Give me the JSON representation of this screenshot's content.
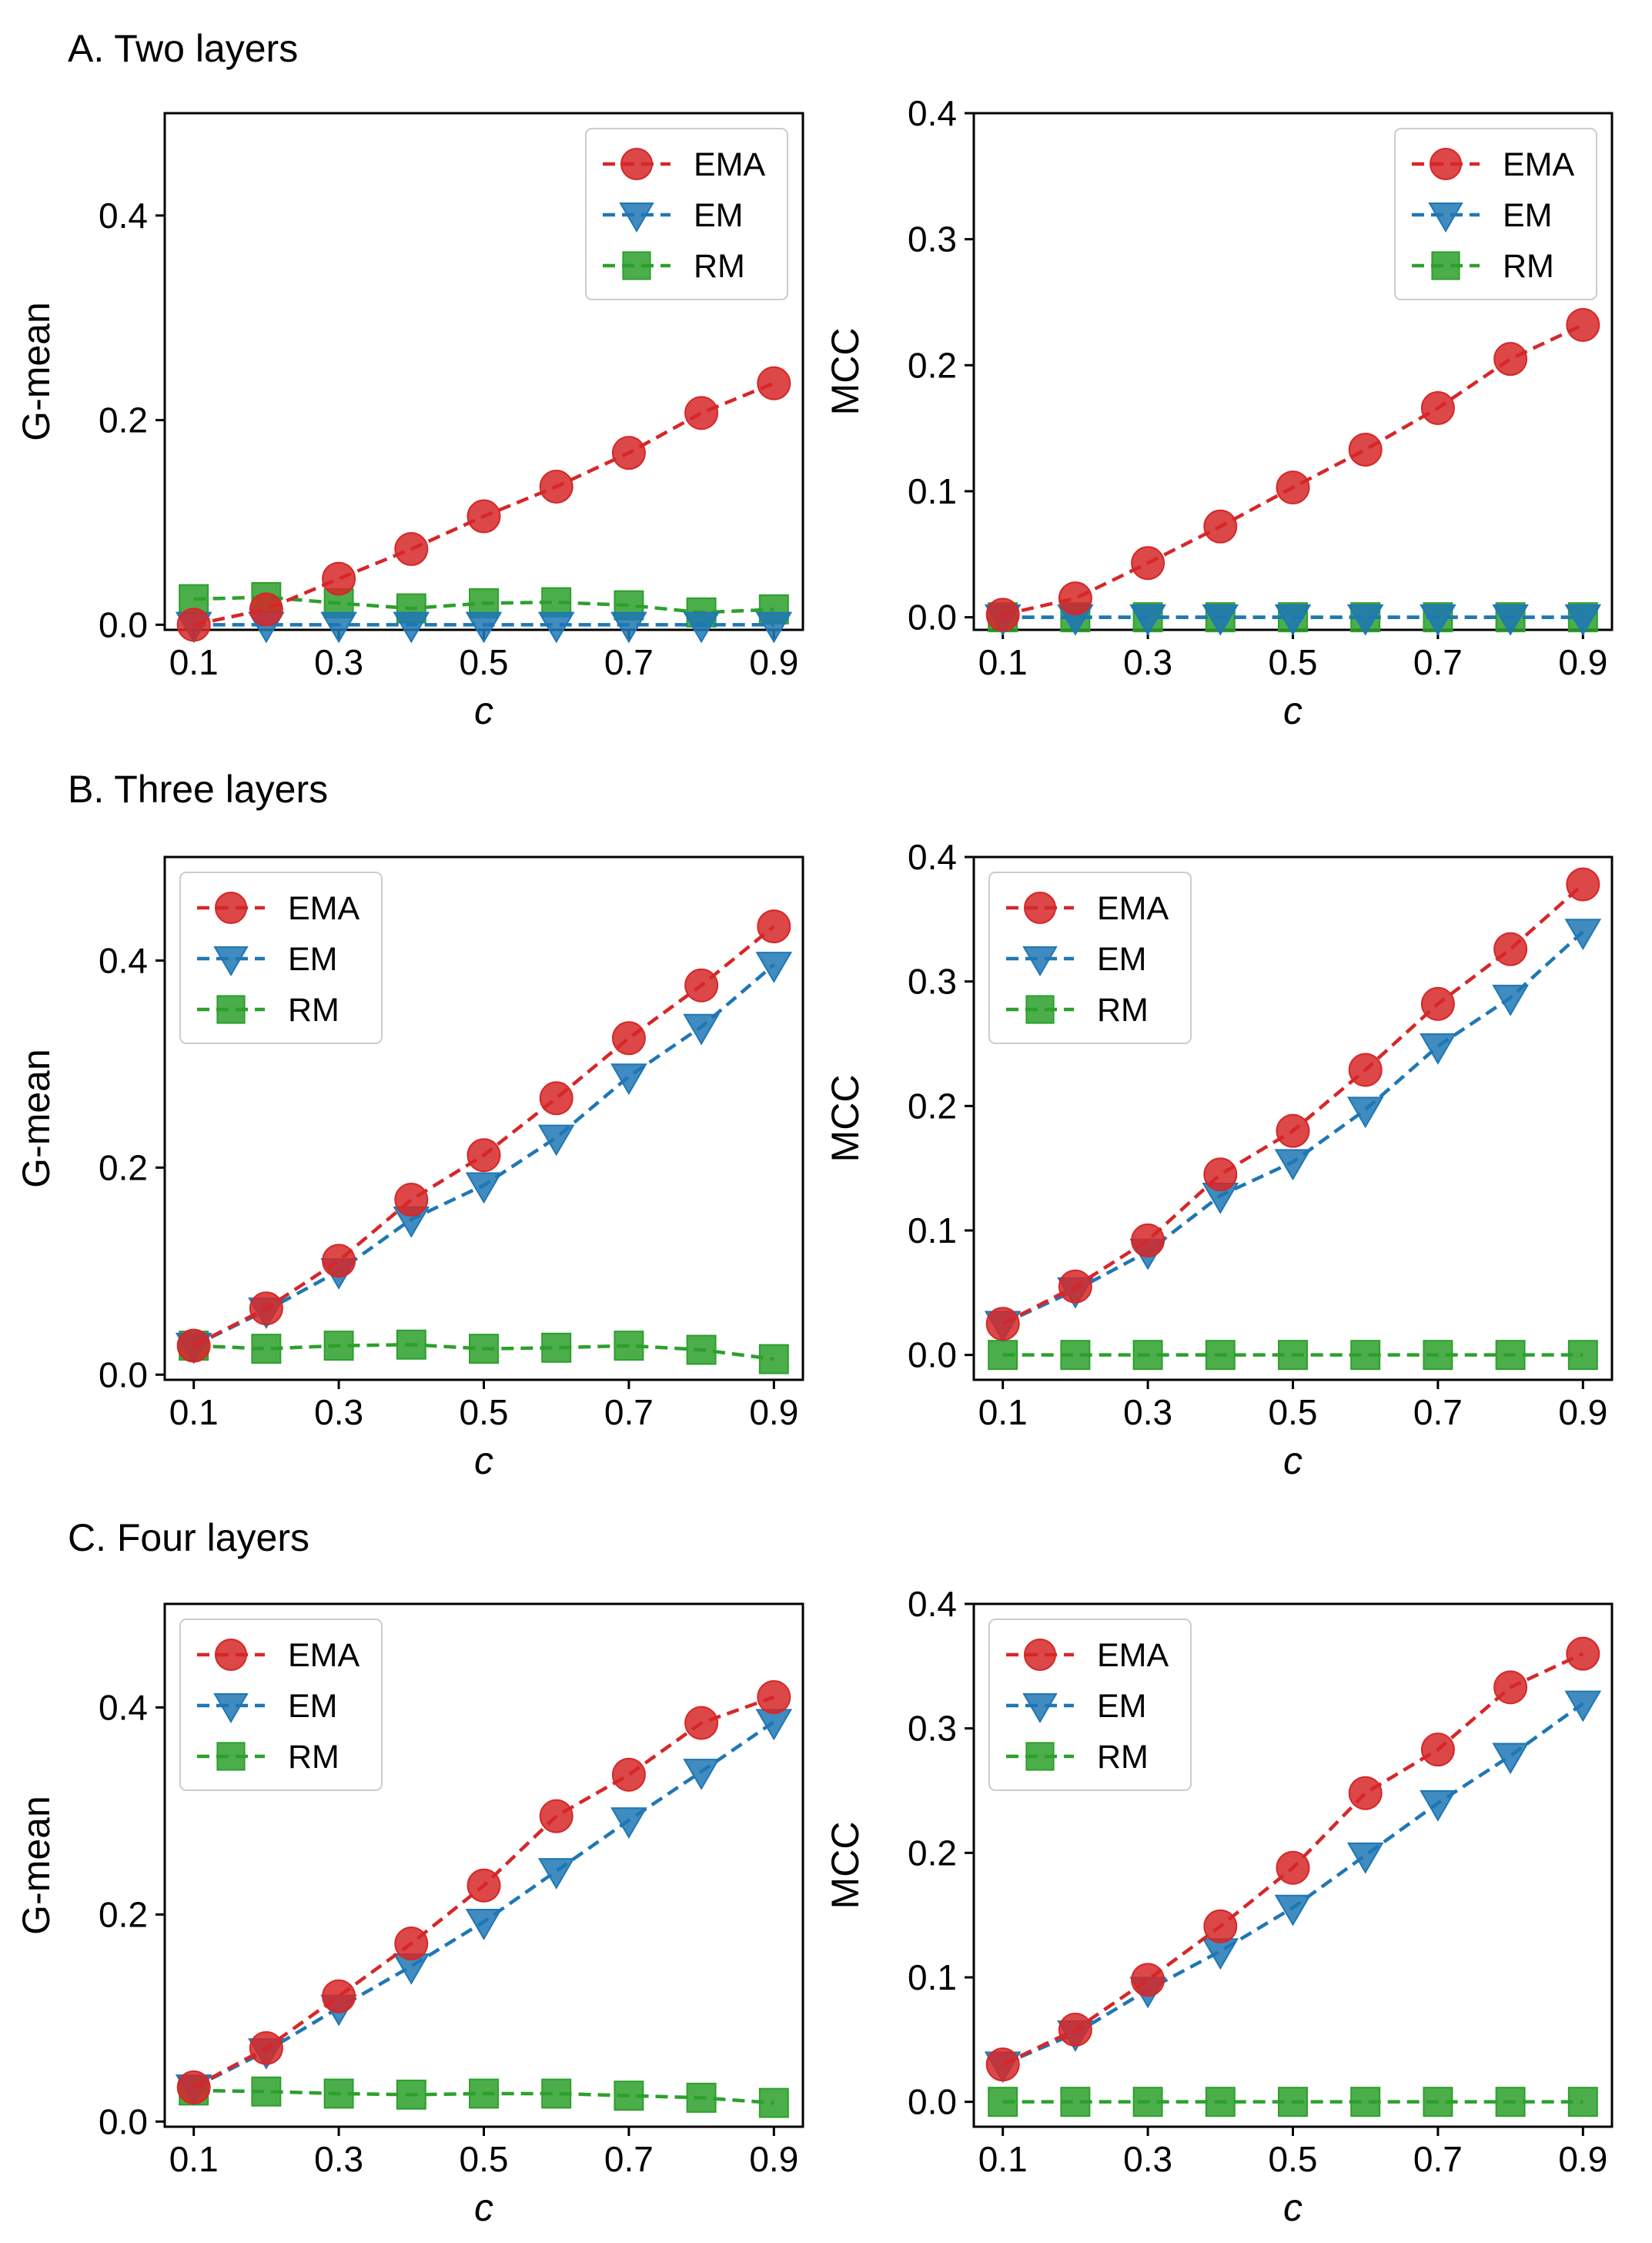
{
  "figure": {
    "panel_titles": [
      "A. Two layers",
      "B. Three layers",
      "C. Four layers"
    ]
  },
  "colors": {
    "EMA": "#d62728",
    "EM": "#1f77b4",
    "RM": "#2ca02c"
  },
  "chart_data": [
    {
      "type": "line",
      "row": "A. Two layers",
      "xlabel": "c",
      "ylabel": "G-mean",
      "x": [
        0.1,
        0.2,
        0.3,
        0.4,
        0.5,
        0.6,
        0.7,
        0.8,
        0.9
      ],
      "xticks": [
        "0.1",
        "0.3",
        "0.5",
        "0.7",
        "0.9"
      ],
      "ylim": [
        -0.005,
        0.5
      ],
      "yticks": [
        "0.0",
        "0.2",
        "0.4"
      ],
      "legend_position": "top-right",
      "series": [
        {
          "name": "EMA",
          "marker": "circle",
          "values": [
            0.0,
            0.015,
            0.045,
            0.074,
            0.106,
            0.135,
            0.168,
            0.207,
            0.236
          ]
        },
        {
          "name": "EM",
          "marker": "triangle-down",
          "values": [
            0.0,
            0.0,
            0.0,
            0.0,
            0.0,
            0.0,
            0.0,
            0.0,
            0.0
          ]
        },
        {
          "name": "RM",
          "marker": "square",
          "values": [
            0.025,
            0.027,
            0.021,
            0.016,
            0.021,
            0.022,
            0.019,
            0.012,
            0.015
          ]
        }
      ]
    },
    {
      "type": "line",
      "row": "A. Two layers",
      "xlabel": "c",
      "ylabel": "MCC",
      "x": [
        0.1,
        0.2,
        0.3,
        0.4,
        0.5,
        0.6,
        0.7,
        0.8,
        0.9
      ],
      "xticks": [
        "0.1",
        "0.3",
        "0.5",
        "0.7",
        "0.9"
      ],
      "ylim": [
        -0.01,
        0.4
      ],
      "yticks": [
        "0.0",
        "0.1",
        "0.2",
        "0.3",
        "0.4"
      ],
      "legend_position": "top-right",
      "series": [
        {
          "name": "EMA",
          "marker": "circle",
          "values": [
            0.002,
            0.015,
            0.043,
            0.072,
            0.103,
            0.133,
            0.166,
            0.205,
            0.232
          ]
        },
        {
          "name": "EM",
          "marker": "triangle-down",
          "values": [
            0.0,
            0.0,
            0.0,
            0.0,
            0.0,
            0.0,
            0.0,
            0.0,
            0.0
          ]
        },
        {
          "name": "RM",
          "marker": "square",
          "values": [
            0.0,
            0.0,
            0.0,
            0.0,
            0.0,
            0.0,
            0.0,
            0.0,
            0.0
          ]
        }
      ]
    },
    {
      "type": "line",
      "row": "B. Three layers",
      "xlabel": "c",
      "ylabel": "G-mean",
      "x": [
        0.1,
        0.2,
        0.3,
        0.4,
        0.5,
        0.6,
        0.7,
        0.8,
        0.9
      ],
      "xticks": [
        "0.1",
        "0.3",
        "0.5",
        "0.7",
        "0.9"
      ],
      "ylim": [
        -0.005,
        0.5
      ],
      "yticks": [
        "0.0",
        "0.2",
        "0.4"
      ],
      "legend_position": "top-left",
      "series": [
        {
          "name": "EMA",
          "marker": "circle",
          "values": [
            0.028,
            0.064,
            0.11,
            0.169,
            0.212,
            0.267,
            0.325,
            0.376,
            0.433
          ]
        },
        {
          "name": "EM",
          "marker": "triangle-down",
          "values": [
            0.028,
            0.062,
            0.1,
            0.15,
            0.183,
            0.229,
            0.288,
            0.336,
            0.396
          ]
        },
        {
          "name": "RM",
          "marker": "square",
          "values": [
            0.028,
            0.025,
            0.028,
            0.029,
            0.025,
            0.026,
            0.028,
            0.024,
            0.015
          ]
        }
      ]
    },
    {
      "type": "line",
      "row": "B. Three layers",
      "xlabel": "c",
      "ylabel": "MCC",
      "x": [
        0.1,
        0.2,
        0.3,
        0.4,
        0.5,
        0.6,
        0.7,
        0.8,
        0.9
      ],
      "xticks": [
        "0.1",
        "0.3",
        "0.5",
        "0.7",
        "0.9"
      ],
      "ylim": [
        -0.02,
        0.4
      ],
      "yticks": [
        "0.0",
        "0.1",
        "0.2",
        "0.3",
        "0.4"
      ],
      "legend_position": "top-left",
      "series": [
        {
          "name": "EMA",
          "marker": "circle",
          "values": [
            0.025,
            0.055,
            0.092,
            0.145,
            0.18,
            0.229,
            0.282,
            0.326,
            0.378
          ]
        },
        {
          "name": "EM",
          "marker": "triangle-down",
          "values": [
            0.025,
            0.052,
            0.083,
            0.128,
            0.155,
            0.197,
            0.248,
            0.287,
            0.34
          ]
        },
        {
          "name": "RM",
          "marker": "square",
          "values": [
            0.0,
            0.0,
            0.0,
            0.0,
            0.0,
            0.0,
            0.0,
            0.0,
            0.0
          ]
        }
      ]
    },
    {
      "type": "line",
      "row": "C. Four layers",
      "xlabel": "c",
      "ylabel": "G-mean",
      "x": [
        0.1,
        0.2,
        0.3,
        0.4,
        0.5,
        0.6,
        0.7,
        0.8,
        0.9
      ],
      "xticks": [
        "0.1",
        "0.3",
        "0.5",
        "0.7",
        "0.9"
      ],
      "ylim": [
        -0.005,
        0.5
      ],
      "yticks": [
        "0.0",
        "0.2",
        "0.4"
      ],
      "legend_position": "top-left",
      "series": [
        {
          "name": "EMA",
          "marker": "circle",
          "values": [
            0.033,
            0.071,
            0.121,
            0.172,
            0.228,
            0.295,
            0.335,
            0.385,
            0.41
          ]
        },
        {
          "name": "EM",
          "marker": "triangle-down",
          "values": [
            0.033,
            0.068,
            0.11,
            0.15,
            0.193,
            0.242,
            0.291,
            0.338,
            0.386
          ]
        },
        {
          "name": "RM",
          "marker": "square",
          "values": [
            0.03,
            0.029,
            0.027,
            0.026,
            0.027,
            0.027,
            0.025,
            0.023,
            0.018
          ]
        }
      ]
    },
    {
      "type": "line",
      "row": "C. Four layers",
      "xlabel": "c",
      "ylabel": "MCC",
      "x": [
        0.1,
        0.2,
        0.3,
        0.4,
        0.5,
        0.6,
        0.7,
        0.8,
        0.9
      ],
      "xticks": [
        "0.1",
        "0.3",
        "0.5",
        "0.7",
        "0.9"
      ],
      "ylim": [
        -0.02,
        0.4
      ],
      "yticks": [
        "0.0",
        "0.1",
        "0.2",
        "0.3",
        "0.4"
      ],
      "legend_position": "top-left",
      "series": [
        {
          "name": "EMA",
          "marker": "circle",
          "values": [
            0.03,
            0.058,
            0.098,
            0.141,
            0.188,
            0.248,
            0.283,
            0.333,
            0.36
          ]
        },
        {
          "name": "EM",
          "marker": "triangle-down",
          "values": [
            0.03,
            0.055,
            0.09,
            0.121,
            0.156,
            0.198,
            0.24,
            0.278,
            0.32
          ]
        },
        {
          "name": "RM",
          "marker": "square",
          "values": [
            0.0,
            0.0,
            0.0,
            0.0,
            0.0,
            0.0,
            0.0,
            0.0,
            0.0
          ]
        }
      ]
    }
  ]
}
